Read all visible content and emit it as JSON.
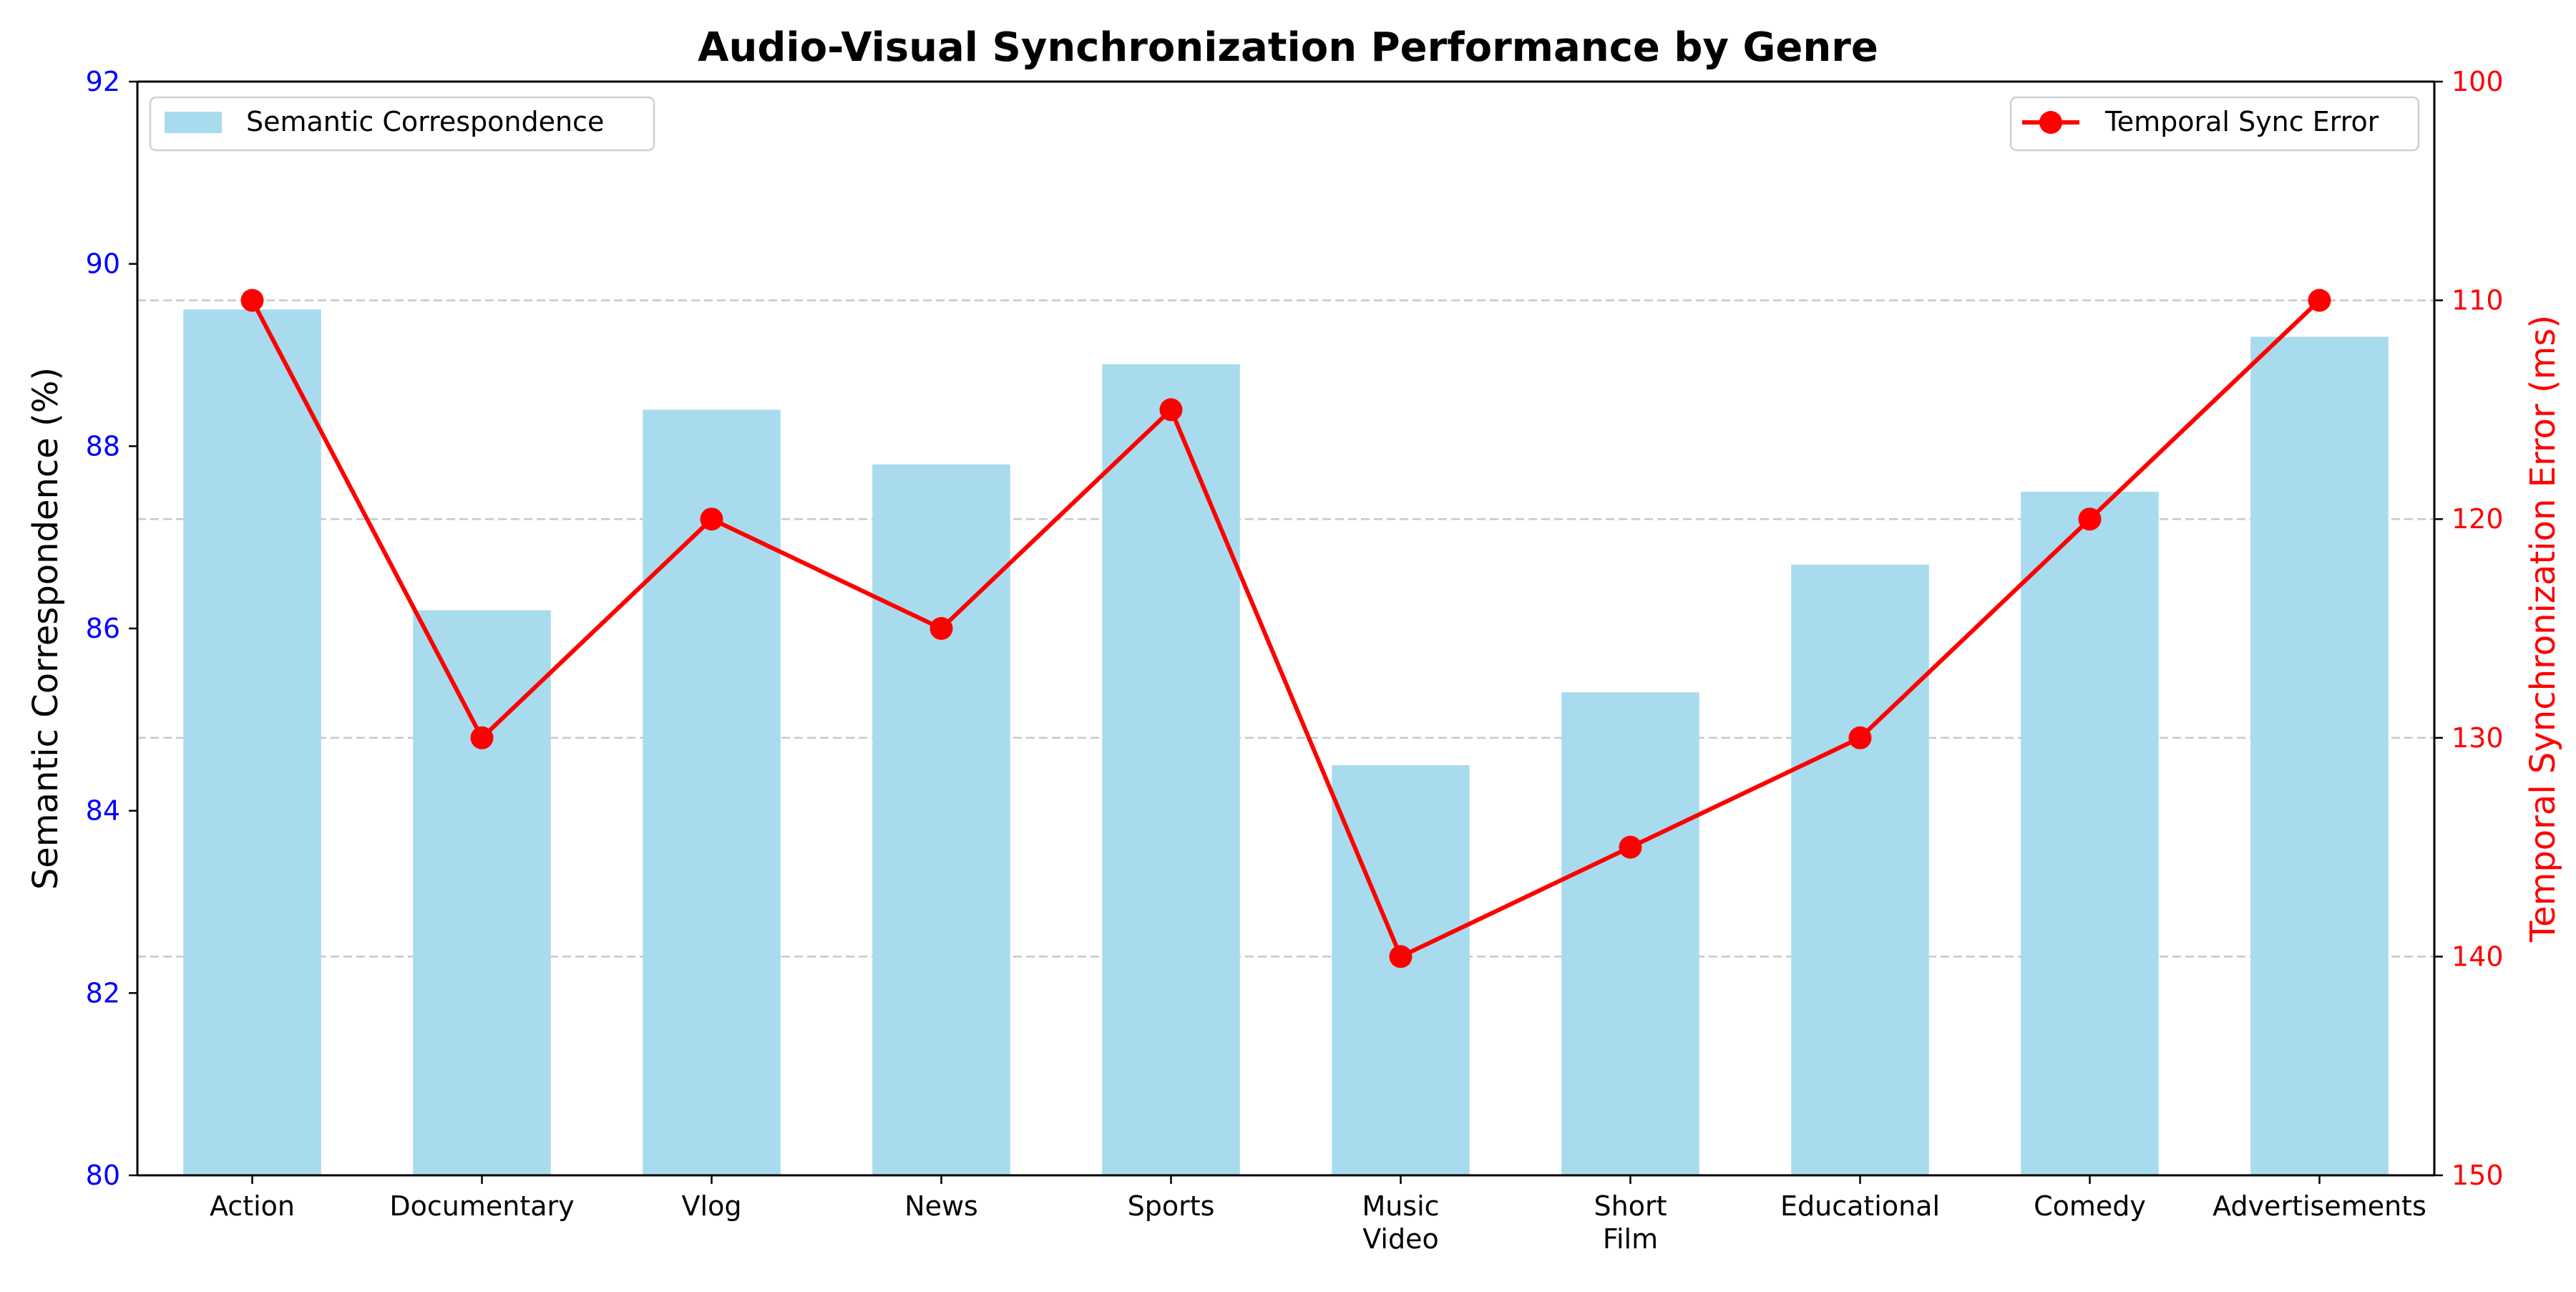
{
  "chart_data": {
    "type": "bar+line",
    "title": "Audio-Visual Synchronization Performance by Genre",
    "categories": [
      "Action",
      "Documentary",
      "Vlog",
      "News",
      "Sports",
      "Music\nVideo",
      "Short\nFilm",
      "Educational",
      "Comedy",
      "Advertisements"
    ],
    "left_axis": {
      "label": "Semantic Correspondence (%)",
      "ylim": [
        80,
        92
      ],
      "ticks": [
        80,
        82,
        84,
        86,
        88,
        90,
        92
      ],
      "tick_color": "#0000ff",
      "label_color": "#000000"
    },
    "right_axis": {
      "label": "Temporal Synchronization Error (ms)",
      "ylim": [
        150,
        100
      ],
      "inverted": true,
      "ticks": [
        100,
        110,
        120,
        130,
        140,
        150
      ],
      "color": "#ff0000"
    },
    "series": [
      {
        "name": "Semantic Correspondence",
        "kind": "bar",
        "axis": "left",
        "color": "#a9dbee",
        "values": [
          89.5,
          86.2,
          88.4,
          87.8,
          88.9,
          84.5,
          85.3,
          86.7,
          87.5,
          89.2
        ]
      },
      {
        "name": "Temporal Sync Error",
        "kind": "line",
        "axis": "right",
        "color": "#ff0000",
        "marker": "circle",
        "values": [
          110,
          130,
          120,
          125,
          115,
          140,
          135,
          130,
          120,
          110
        ]
      }
    ],
    "grid": {
      "y": true,
      "style": "dashed",
      "axis": "right"
    },
    "legends": [
      {
        "series": "Semantic Correspondence",
        "placement": "top-left"
      },
      {
        "series": "Temporal Sync Error",
        "placement": "top-right"
      }
    ]
  }
}
